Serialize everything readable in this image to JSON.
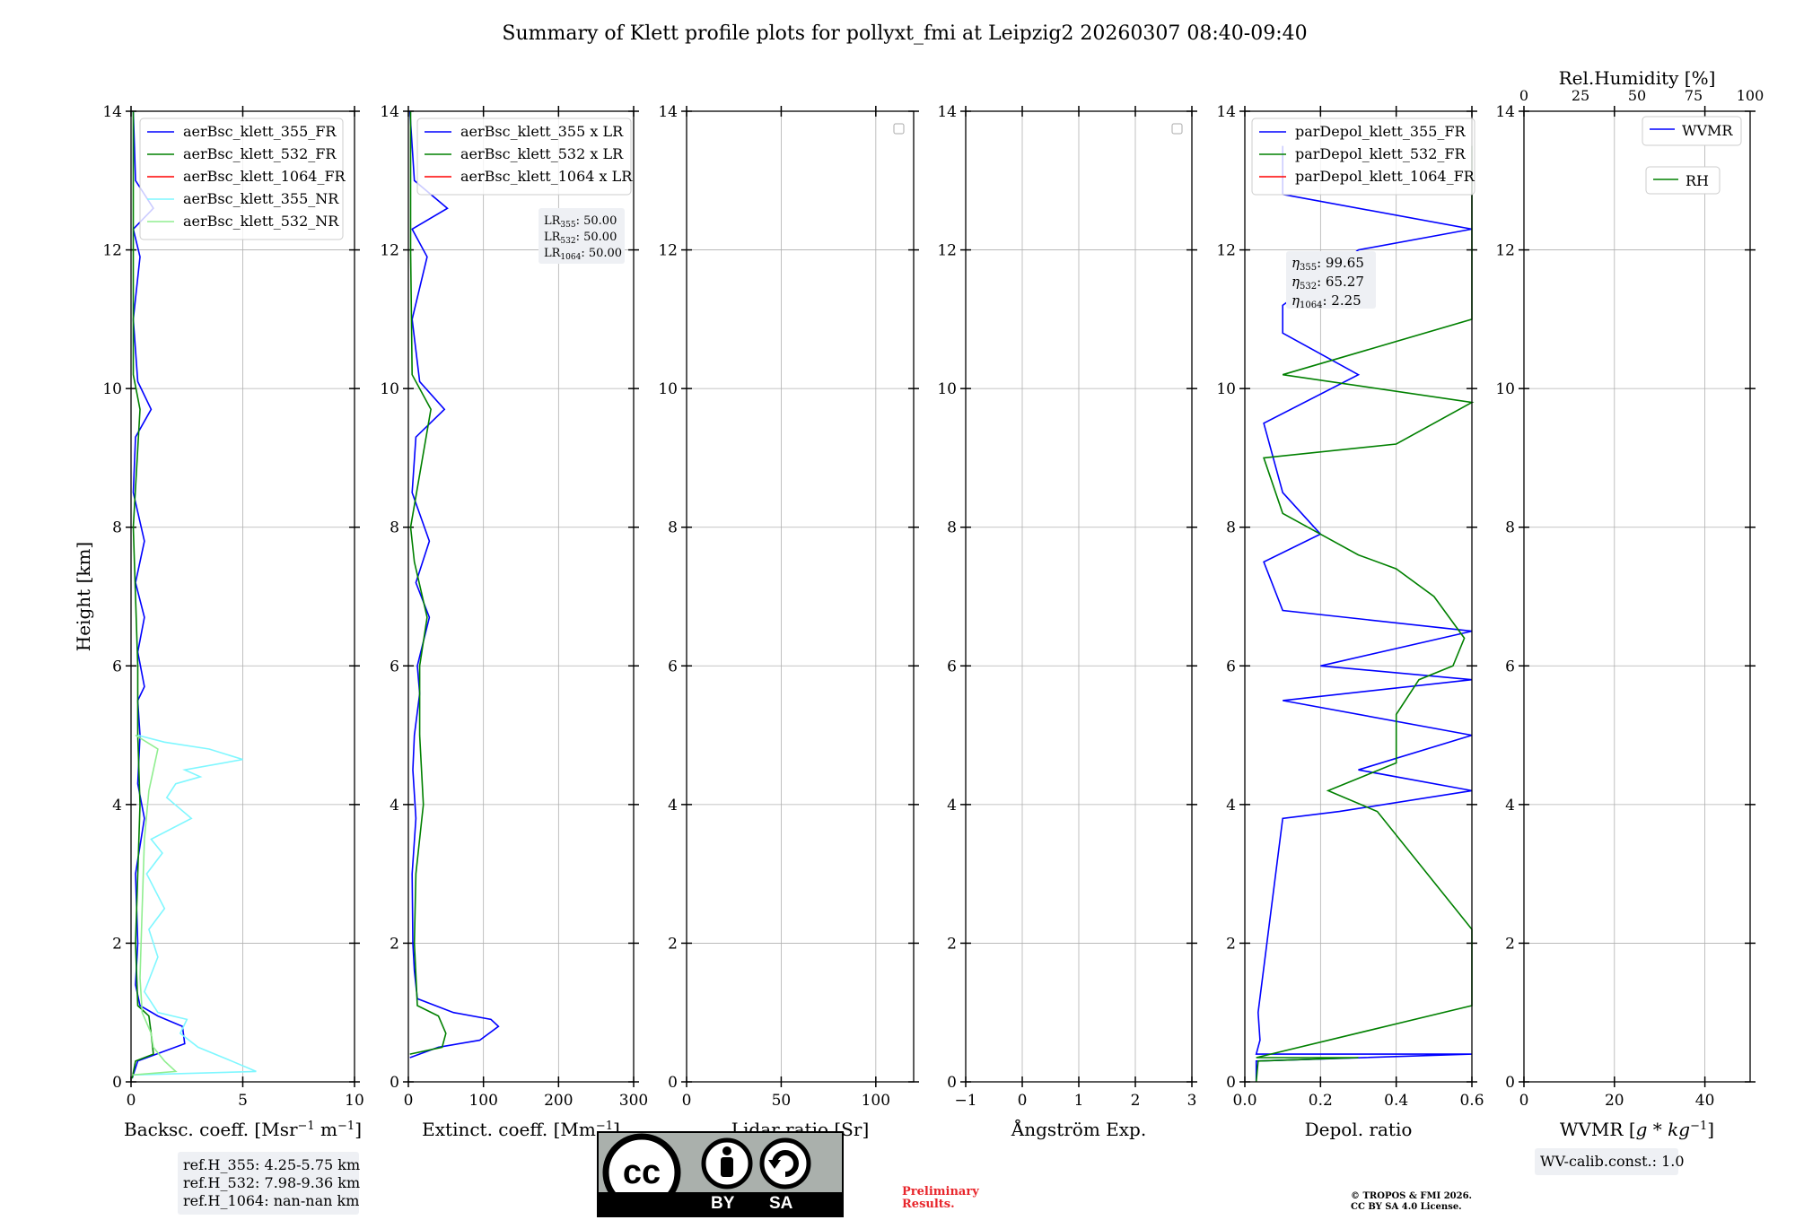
{
  "title": "Summary of Klett profile plots for pollyxt_fmi at Leipzig2 20260307 08:40-09:40",
  "ylabel": "Height [km]",
  "y_ticks": [
    "0",
    "2",
    "4",
    "6",
    "8",
    "10",
    "12",
    "14"
  ],
  "colors": {
    "blue": "#0000ff",
    "green": "#008000",
    "red": "#ff0000",
    "cyan": "#7ff7ff",
    "lightgreen": "#90ee90",
    "grid": "#b0b0b0"
  },
  "chart_data": [
    {
      "id": "backscatter",
      "type": "line",
      "xlabel_html": "Backsc. coeff. [Msr<tspan dy='-7' font-size='13'>−1</tspan><tspan dy='7'> m</tspan><tspan dy='-7' font-size='13'>−1</tspan><tspan dy='7'>]</tspan>",
      "xlabel": "Backsc. coeff. [Msr−1 m−1]",
      "xlim": [
        0,
        10
      ],
      "ylim": [
        0,
        14
      ],
      "x_ticks": [
        "0",
        "5",
        "10"
      ],
      "legend": [
        "aerBsc_klett_355_FR",
        "aerBsc_klett_532_FR",
        "aerBsc_klett_1064_FR",
        "aerBsc_klett_355_NR",
        "aerBsc_klett_532_NR"
      ],
      "series": [
        {
          "name": "aerBsc_klett_355_FR",
          "color": "blue",
          "points": [
            [
              0.05,
              0.05
            ],
            [
              0.3,
              0.3
            ],
            [
              2.4,
              0.55
            ],
            [
              2.3,
              0.8
            ],
            [
              1.2,
              0.95
            ],
            [
              0.4,
              1.1
            ],
            [
              0.2,
              1.4
            ],
            [
              0.3,
              2.0
            ],
            [
              0.2,
              3.0
            ],
            [
              0.6,
              3.8
            ],
            [
              0.3,
              4.3
            ],
            [
              0.4,
              5.0
            ],
            [
              0.3,
              5.5
            ],
            [
              0.6,
              5.7
            ],
            [
              0.3,
              6.2
            ],
            [
              0.6,
              6.7
            ],
            [
              0.2,
              7.2
            ],
            [
              0.6,
              7.8
            ],
            [
              0.1,
              8.5
            ],
            [
              0.2,
              9.3
            ],
            [
              0.9,
              9.7
            ],
            [
              0.3,
              10.1
            ],
            [
              0.1,
              11.0
            ],
            [
              0.4,
              11.9
            ],
            [
              0.1,
              12.3
            ],
            [
              1.0,
              12.6
            ],
            [
              0.2,
              13.0
            ],
            [
              0.1,
              14.0
            ]
          ]
        },
        {
          "name": "aerBsc_klett_532_FR",
          "color": "green",
          "points": [
            [
              0.05,
              0.05
            ],
            [
              0.2,
              0.3
            ],
            [
              1.0,
              0.4
            ],
            [
              0.9,
              0.7
            ],
            [
              0.8,
              0.95
            ],
            [
              0.3,
              1.1
            ],
            [
              0.2,
              2.0
            ],
            [
              0.3,
              3.0
            ],
            [
              0.4,
              4.0
            ],
            [
              0.3,
              5.0
            ],
            [
              0.3,
              6.0
            ],
            [
              0.2,
              7.0
            ],
            [
              0.1,
              8.0
            ],
            [
              0.4,
              9.7
            ],
            [
              0.1,
              10.2
            ],
            [
              0.1,
              12.0
            ],
            [
              0.1,
              13.5
            ],
            [
              0.1,
              14.0
            ]
          ]
        },
        {
          "name": "aerBsc_klett_1064_FR",
          "color": "red",
          "points": []
        },
        {
          "name": "aerBsc_klett_355_NR",
          "color": "cyan",
          "points": [
            [
              0.1,
              0.1
            ],
            [
              5.6,
              0.15
            ],
            [
              4.5,
              0.3
            ],
            [
              3.0,
              0.5
            ],
            [
              2.2,
              0.7
            ],
            [
              2.5,
              0.9
            ],
            [
              1.2,
              1.0
            ],
            [
              0.6,
              1.3
            ],
            [
              1.2,
              1.8
            ],
            [
              0.8,
              2.2
            ],
            [
              1.5,
              2.5
            ],
            [
              0.7,
              3.0
            ],
            [
              1.4,
              3.3
            ],
            [
              0.9,
              3.5
            ],
            [
              2.7,
              3.8
            ],
            [
              1.6,
              4.1
            ],
            [
              2.0,
              4.3
            ],
            [
              3.1,
              4.4
            ],
            [
              2.4,
              4.5
            ],
            [
              5.0,
              4.65
            ],
            [
              3.5,
              4.8
            ],
            [
              1.5,
              4.9
            ],
            [
              0.3,
              5.0
            ]
          ]
        },
        {
          "name": "aerBsc_klett_532_NR",
          "color": "lightgreen",
          "points": [
            [
              0.05,
              0.1
            ],
            [
              2.0,
              0.15
            ],
            [
              1.5,
              0.3
            ],
            [
              1.0,
              0.5
            ],
            [
              0.9,
              0.7
            ],
            [
              0.5,
              1.0
            ],
            [
              0.4,
              1.5
            ],
            [
              0.5,
              2.5
            ],
            [
              0.6,
              3.5
            ],
            [
              0.8,
              4.2
            ],
            [
              1.0,
              4.5
            ],
            [
              1.2,
              4.8
            ],
            [
              0.2,
              5.0
            ]
          ]
        }
      ],
      "info_box": [
        "ref.H_355: 4.25-5.75 km",
        "ref.H_532: 7.98-9.36 km",
        "ref.H_1064: nan-nan km"
      ]
    },
    {
      "id": "extinction",
      "type": "line",
      "xlabel_html": "Extinct. coeff. [Mm<tspan dy='-7' font-size='13'>−1</tspan><tspan dy='7'>]</tspan>",
      "xlabel": "Extinct. coeff. [Mm−1]",
      "xlim": [
        0,
        300
      ],
      "ylim": [
        0,
        14
      ],
      "x_ticks": [
        "0",
        "100",
        "200",
        "300"
      ],
      "legend": [
        "aerBsc_klett_355 x LR",
        "aerBsc_klett_532 x LR",
        "aerBsc_klett_1064 x LR"
      ],
      "series": [
        {
          "name": "aerBsc_klett_355 x LR",
          "color": "blue",
          "points": [
            [
              2,
              0.35
            ],
            [
              40,
              0.5
            ],
            [
              95,
              0.6
            ],
            [
              120,
              0.8
            ],
            [
              110,
              0.9
            ],
            [
              60,
              1.0
            ],
            [
              12,
              1.2
            ],
            [
              8,
              1.6
            ],
            [
              6,
              2.0
            ],
            [
              5,
              3.0
            ],
            [
              10,
              3.8
            ],
            [
              6,
              4.5
            ],
            [
              8,
              5.0
            ],
            [
              15,
              5.6
            ],
            [
              12,
              6.0
            ],
            [
              28,
              6.7
            ],
            [
              10,
              7.2
            ],
            [
              28,
              7.8
            ],
            [
              5,
              8.5
            ],
            [
              10,
              9.3
            ],
            [
              48,
              9.7
            ],
            [
              15,
              10.1
            ],
            [
              5,
              11.0
            ],
            [
              25,
              11.9
            ],
            [
              5,
              12.3
            ],
            [
              52,
              12.6
            ],
            [
              8,
              13.0
            ],
            [
              2,
              14.0
            ]
          ]
        },
        {
          "name": "aerBsc_klett_532 x LR",
          "color": "green",
          "points": [
            [
              2,
              0.4
            ],
            [
              45,
              0.5
            ],
            [
              50,
              0.7
            ],
            [
              40,
              0.95
            ],
            [
              12,
              1.1
            ],
            [
              8,
              2.0
            ],
            [
              10,
              3.0
            ],
            [
              20,
              4.0
            ],
            [
              15,
              5.0
            ],
            [
              15,
              6.0
            ],
            [
              25,
              6.7
            ],
            [
              8,
              7.5
            ],
            [
              3,
              8.0
            ],
            [
              30,
              9.7
            ],
            [
              5,
              10.2
            ],
            [
              3,
              12.0
            ],
            [
              3,
              14.0
            ]
          ]
        },
        {
          "name": "aerBsc_klett_1064 x LR",
          "color": "red",
          "points": []
        }
      ],
      "lr_box": [
        {
          "sub": "355",
          "value": "50.00"
        },
        {
          "sub": "532",
          "value": "50.00"
        },
        {
          "sub": "1064",
          "value": "50.00"
        }
      ],
      "lr_prefix": "LR"
    },
    {
      "id": "lidar-ratio",
      "type": "line",
      "xlabel_html": "Lidar ratio [Sr]",
      "xlabel": "Lidar ratio [Sr]",
      "xlim": [
        0,
        120
      ],
      "ylim": [
        0,
        14
      ],
      "x_ticks": [
        "0",
        "50",
        "100"
      ],
      "legend": [],
      "series": []
    },
    {
      "id": "angstrom",
      "type": "line",
      "xlabel_html": "Ångström Exp.",
      "xlabel": "Ångström Exp.",
      "xlim": [
        -1,
        3
      ],
      "ylim": [
        0,
        14
      ],
      "x_ticks": [
        "−1",
        "0",
        "1",
        "2",
        "3"
      ],
      "legend": [],
      "series": []
    },
    {
      "id": "depol",
      "type": "line",
      "xlabel_html": "Depol. ratio",
      "xlabel": "Depol. ratio",
      "xlim": [
        0,
        0.6
      ],
      "ylim": [
        0,
        14
      ],
      "x_ticks": [
        "0.0",
        "0.2",
        "0.4",
        "0.6"
      ],
      "legend": [
        "parDepol_klett_355_FR",
        "parDepol_klett_532_FR",
        "parDepol_klett_1064_FR"
      ],
      "series": [
        {
          "name": "parDepol_klett_355_FR",
          "color": "blue",
          "points": [
            [
              0.03,
              0.0
            ],
            [
              0.03,
              0.3
            ],
            [
              0.6,
              0.4
            ],
            [
              0.03,
              0.4
            ],
            [
              0.04,
              0.6
            ],
            [
              0.035,
              1.0
            ],
            [
              0.1,
              3.8
            ],
            [
              0.25,
              3.9
            ],
            [
              0.6,
              4.2
            ],
            [
              0.3,
              4.5
            ],
            [
              0.6,
              5.0
            ],
            [
              0.1,
              5.5
            ],
            [
              0.6,
              5.8
            ],
            [
              0.2,
              6.0
            ],
            [
              0.6,
              6.5
            ],
            [
              0.1,
              6.8
            ],
            [
              0.05,
              7.5
            ],
            [
              0.2,
              7.9
            ],
            [
              0.1,
              8.5
            ],
            [
              0.05,
              9.5
            ],
            [
              0.3,
              10.2
            ],
            [
              0.1,
              10.8
            ],
            [
              0.1,
              11.2
            ],
            [
              0.3,
              12.0
            ],
            [
              0.6,
              12.3
            ],
            [
              0.1,
              12.8
            ],
            [
              0.1,
              13.5
            ]
          ]
        },
        {
          "name": "parDepol_klett_532_FR",
          "color": "green",
          "points": [
            [
              0.03,
              0.0
            ],
            [
              0.035,
              0.3
            ],
            [
              0.3,
              0.35
            ],
            [
              0.03,
              0.35
            ],
            [
              0.6,
              1.1
            ],
            [
              0.6,
              2.2
            ],
            [
              0.35,
              3.9
            ],
            [
              0.22,
              4.2
            ],
            [
              0.4,
              4.6
            ],
            [
              0.4,
              5.3
            ],
            [
              0.46,
              5.8
            ],
            [
              0.55,
              6.0
            ],
            [
              0.58,
              6.4
            ],
            [
              0.5,
              7.0
            ],
            [
              0.4,
              7.4
            ],
            [
              0.3,
              7.6
            ],
            [
              0.2,
              7.9
            ],
            [
              0.1,
              8.2
            ],
            [
              0.05,
              9.0
            ],
            [
              0.4,
              9.2
            ],
            [
              0.6,
              9.8
            ],
            [
              0.1,
              10.2
            ],
            [
              0.6,
              11.0
            ],
            [
              0.6,
              12.5
            ],
            [
              0.6,
              13.5
            ]
          ]
        },
        {
          "name": "parDepol_klett_1064_FR",
          "color": "red",
          "points": []
        }
      ],
      "eta_box": [
        {
          "sub": "355",
          "value": "99.65"
        },
        {
          "sub": "532",
          "value": "65.27"
        },
        {
          "sub": "1064",
          "value": "2.25"
        }
      ],
      "eta_prefix": "η"
    },
    {
      "id": "wvmr",
      "type": "line",
      "xlabel_html": "WVMR [<tspan font-style='italic'>g</tspan> * <tspan font-style='italic'>kg</tspan><tspan dy='-7' font-size='13'>−1</tspan><tspan dy='7'>]</tspan>",
      "xlabel": "WVMR [g * kg−1]",
      "xlim": [
        0,
        50
      ],
      "ylim": [
        0,
        14
      ],
      "x_ticks": [
        "0",
        "20",
        "40"
      ],
      "top_label": "Rel.Humidity [%]",
      "top_ticks": [
        "0",
        "25",
        "50",
        "75",
        "100"
      ],
      "legend": [
        "WVMR",
        "RH"
      ],
      "series": [],
      "info_box": [
        "WV-calib.const.: 1.0"
      ]
    }
  ],
  "footer": {
    "license_left": "BY",
    "license_right": "SA",
    "preliminary": [
      "Preliminary",
      "Results."
    ],
    "copyright": [
      "© TROPOS & FMI 2026.",
      "CC BY SA 4.0 License."
    ]
  }
}
